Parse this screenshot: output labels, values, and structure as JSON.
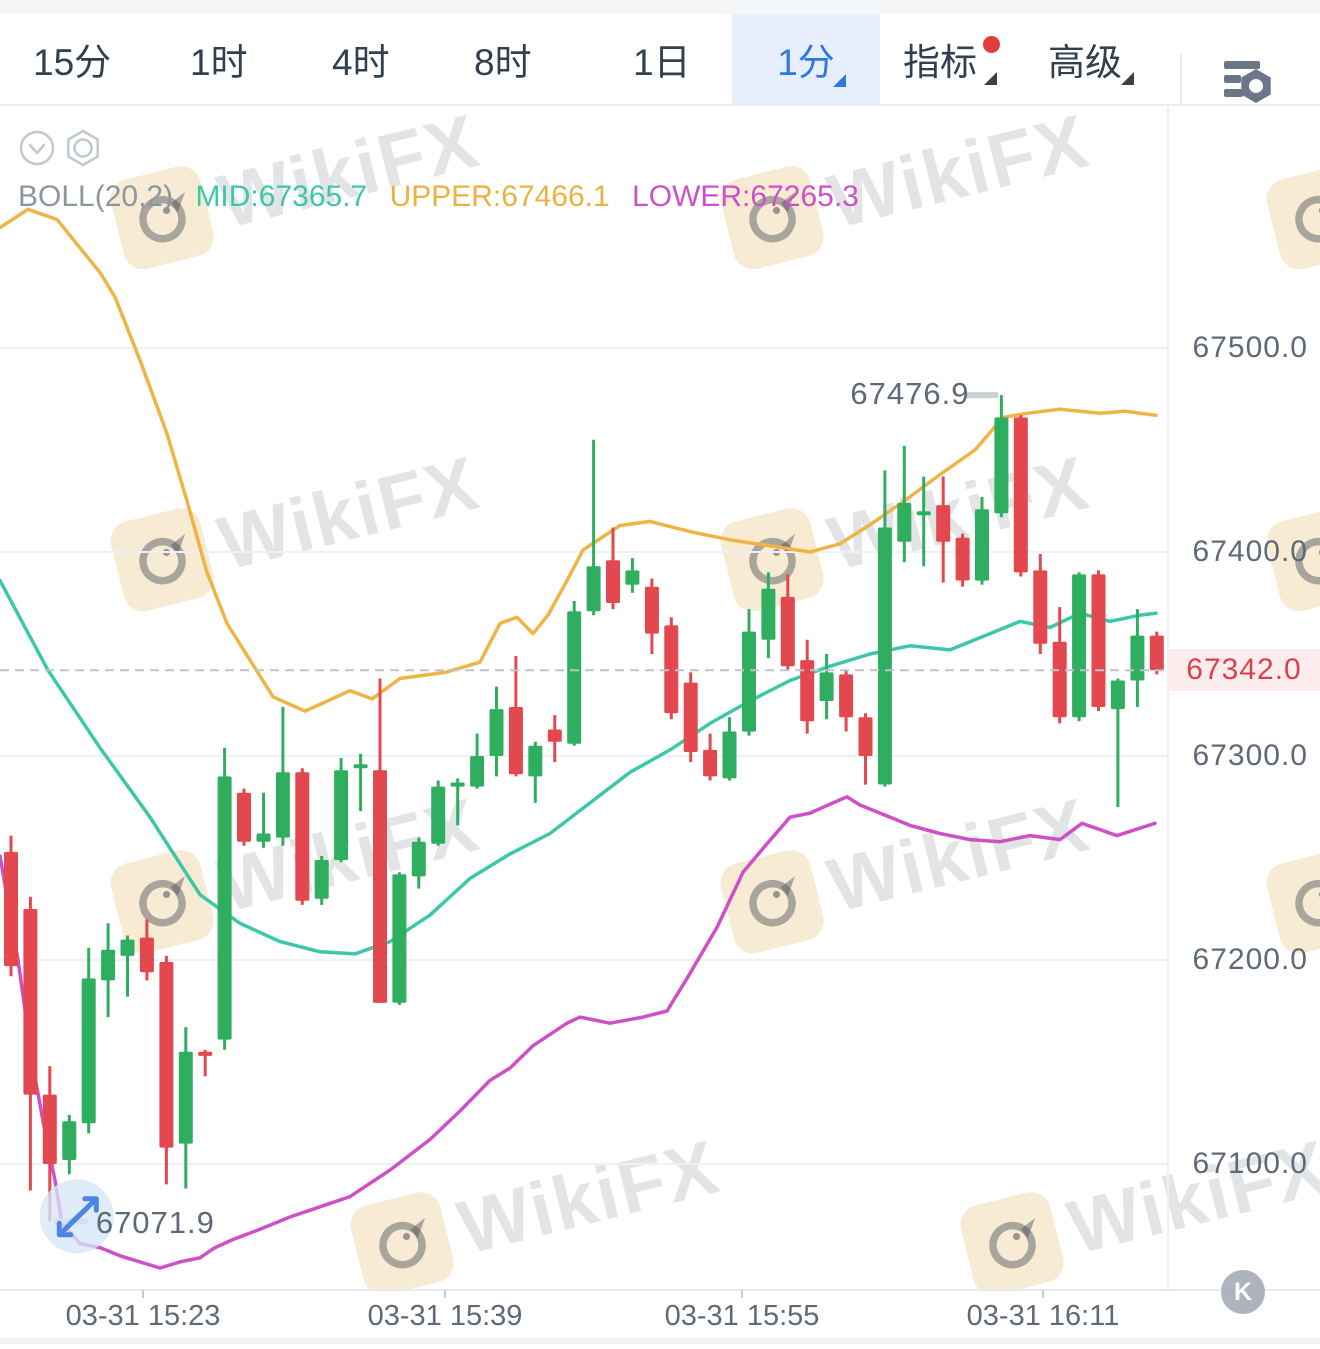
{
  "toolbar": {
    "tabs": [
      {
        "label": "15分"
      },
      {
        "label": "1时"
      },
      {
        "label": "4时"
      },
      {
        "label": "8时"
      },
      {
        "label": "1日"
      },
      {
        "label": "1分",
        "selected": true,
        "caret": true
      },
      {
        "label": "指标",
        "caret": true,
        "badge_dot": true
      },
      {
        "label": "高级",
        "caret": true
      }
    ],
    "settings_icon": "indicator-list-settings-icon"
  },
  "legend": {
    "name": "BOLL(20,2)",
    "mid_label": "MID:67365.7",
    "upper_label": "UPPER:67466.1",
    "lower_label": "LOWER:67265.3"
  },
  "annotations": {
    "high": "67476.9",
    "low": "67071.9",
    "current_price": "67342.0"
  },
  "watermark": {
    "text": "WikiFX"
  },
  "k_button": "K",
  "chart_data": {
    "type": "candlestick",
    "indicator": "BOLL(20,2)",
    "grid": "horizontal-only",
    "ylim": [
      67038,
      67620
    ],
    "y_axis": {
      "labels": [
        "67500.0",
        "67400.0",
        "67300.0",
        "67200.0",
        "67100.0"
      ],
      "values": [
        67500,
        67400,
        67300,
        67200,
        67100
      ]
    },
    "x_axis": {
      "labels": [
        "03-31 15:23",
        "03-31 15:39",
        "03-31 15:55",
        "03-31 16:11"
      ]
    },
    "current_price": 67342.0,
    "high_marker": {
      "value": 67476.9,
      "index": 51
    },
    "low_marker": {
      "value": 67071.9,
      "index": 2
    },
    "colors": {
      "up": "#2fae60",
      "down": "#e2484e",
      "upper_band": "#eeb445",
      "mid_band": "#3cc8a8",
      "lower_band": "#cd50c8"
    },
    "candles": [
      [
        67253,
        67261,
        67192,
        67197
      ],
      [
        67225,
        67231,
        67087,
        67134
      ],
      [
        67134,
        67148,
        67072,
        67100
      ],
      [
        67102,
        67124,
        67095,
        67121
      ],
      [
        67120,
        67206,
        67115,
        67191
      ],
      [
        67190,
        67218,
        67172,
        67205
      ],
      [
        67202,
        67212,
        67182,
        67210
      ],
      [
        67211,
        67220,
        67190,
        67194
      ],
      [
        67199,
        67202,
        67090,
        67108
      ],
      [
        67110,
        67167,
        67088,
        67155
      ],
      [
        67155,
        67156,
        67143,
        67153
      ],
      [
        67161,
        67304,
        67156,
        67290
      ],
      [
        67282,
        67284,
        67256,
        67258
      ],
      [
        67258,
        67282,
        67255,
        67262
      ],
      [
        67260,
        67324,
        67256,
        67292
      ],
      [
        67292,
        67294,
        67227,
        67229
      ],
      [
        67230,
        67251,
        67227,
        67249
      ],
      [
        67249,
        67299,
        67248,
        67293
      ],
      [
        67294,
        67301,
        67273,
        67296
      ],
      [
        67293,
        67338,
        67179,
        67179
      ],
      [
        67179,
        67243,
        67178,
        67242
      ],
      [
        67241,
        67260,
        67235,
        67258
      ],
      [
        67257,
        67288,
        67256,
        67285
      ],
      [
        67285,
        67289,
        67266,
        67287
      ],
      [
        67285,
        67311,
        67284,
        67300
      ],
      [
        67300,
        67334,
        67290,
        67323
      ],
      [
        67324,
        67349,
        67290,
        67291
      ],
      [
        67290,
        67307,
        67277,
        67305
      ],
      [
        67313,
        67320,
        67297,
        67307
      ],
      [
        67306,
        67376,
        67305,
        67371
      ],
      [
        67371,
        67455,
        67369,
        67393
      ],
      [
        67396,
        67412,
        67372,
        67375
      ],
      [
        67384,
        67397,
        67380,
        67391
      ],
      [
        67383,
        67387,
        67350,
        67360
      ],
      [
        67364,
        67368,
        67318,
        67321
      ],
      [
        67336,
        67341,
        67297,
        67302
      ],
      [
        67303,
        67311,
        67288,
        67290
      ],
      [
        67289,
        67319,
        67288,
        67312
      ],
      [
        67312,
        67372,
        67310,
        67361
      ],
      [
        67357,
        67390,
        67348,
        67382
      ],
      [
        67378,
        67389,
        67342,
        67344
      ],
      [
        67347,
        67357,
        67311,
        67317
      ],
      [
        67327,
        67350,
        67318,
        67341
      ],
      [
        67340,
        67342,
        67312,
        67319
      ],
      [
        67319,
        67321,
        67286,
        67300
      ],
      [
        67286,
        67440,
        67285,
        67412
      ],
      [
        67405,
        67452,
        67395,
        67424
      ],
      [
        67418,
        67437,
        67393,
        67420
      ],
      [
        67423,
        67437,
        67385,
        67405
      ],
      [
        67407,
        67409,
        67383,
        67386
      ],
      [
        67386,
        67427,
        67384,
        67421
      ],
      [
        67419,
        67476.9,
        67417,
        67466
      ],
      [
        67466,
        67467,
        67388,
        67390
      ],
      [
        67391,
        67399,
        67350,
        67355
      ],
      [
        67356,
        67373,
        67316,
        67319
      ],
      [
        67319,
        67390,
        67317,
        67389
      ],
      [
        67389,
        67391,
        67322,
        67324
      ],
      [
        67323,
        67338,
        67275,
        67337
      ],
      [
        67337,
        67372,
        67324,
        67359
      ],
      [
        67359,
        67361,
        67340,
        67342
      ]
    ],
    "bands": {
      "upper": [
        [
          0,
          67559
        ],
        [
          28,
          67568
        ],
        [
          57,
          67563
        ],
        [
          100,
          67537
        ],
        [
          115,
          67525
        ],
        [
          140,
          67494
        ],
        [
          167,
          67458
        ],
        [
          187,
          67425
        ],
        [
          207,
          67390
        ],
        [
          227,
          67365
        ],
        [
          250,
          67347
        ],
        [
          273,
          67329
        ],
        [
          305,
          67322
        ],
        [
          350,
          67332
        ],
        [
          372,
          67328
        ],
        [
          400,
          67338
        ],
        [
          445,
          67341
        ],
        [
          480,
          67346
        ],
        [
          500,
          67365
        ],
        [
          517,
          67368
        ],
        [
          533,
          67360
        ],
        [
          548,
          67369
        ],
        [
          567,
          67386
        ],
        [
          583,
          67401
        ],
        [
          620,
          67413
        ],
        [
          650,
          67415
        ],
        [
          690,
          67410
        ],
        [
          730,
          67406
        ],
        [
          770,
          67403
        ],
        [
          810,
          67400
        ],
        [
          840,
          67404
        ],
        [
          875,
          67415
        ],
        [
          907,
          67426
        ],
        [
          940,
          67438
        ],
        [
          975,
          67450
        ],
        [
          1003,
          67466
        ],
        [
          1027,
          67468
        ],
        [
          1060,
          67470
        ],
        [
          1100,
          67468
        ],
        [
          1125,
          67469
        ],
        [
          1156,
          67467
        ]
      ],
      "mid": [
        [
          0,
          67386
        ],
        [
          48,
          67342
        ],
        [
          100,
          67304
        ],
        [
          150,
          67270
        ],
        [
          200,
          67232
        ],
        [
          240,
          67218
        ],
        [
          280,
          67209
        ],
        [
          320,
          67204
        ],
        [
          355,
          67203
        ],
        [
          390,
          67209
        ],
        [
          430,
          67222
        ],
        [
          470,
          67240
        ],
        [
          510,
          67252
        ],
        [
          550,
          67262
        ],
        [
          590,
          67277
        ],
        [
          630,
          67292
        ],
        [
          670,
          67303
        ],
        [
          710,
          67316
        ],
        [
          750,
          67327
        ],
        [
          790,
          67337
        ],
        [
          830,
          67344
        ],
        [
          870,
          67350
        ],
        [
          910,
          67354
        ],
        [
          950,
          67352
        ],
        [
          990,
          67360
        ],
        [
          1020,
          67366
        ],
        [
          1050,
          67363
        ],
        [
          1080,
          67370
        ],
        [
          1110,
          67366
        ],
        [
          1140,
          67369
        ],
        [
          1156,
          67370
        ]
      ],
      "lower": [
        [
          0,
          67251
        ],
        [
          18,
          67200
        ],
        [
          33,
          67148
        ],
        [
          43,
          67121
        ],
        [
          55,
          67092
        ],
        [
          62,
          67071
        ],
        [
          80,
          67061
        ],
        [
          100,
          67059
        ],
        [
          120,
          67055
        ],
        [
          140,
          67052
        ],
        [
          160,
          67049
        ],
        [
          180,
          67052
        ],
        [
          200,
          67054
        ],
        [
          215,
          67059
        ],
        [
          233,
          67063
        ],
        [
          260,
          67068
        ],
        [
          290,
          67074
        ],
        [
          320,
          67079
        ],
        [
          350,
          67084
        ],
        [
          390,
          67097
        ],
        [
          430,
          67112
        ],
        [
          460,
          67126
        ],
        [
          490,
          67141
        ],
        [
          510,
          67147
        ],
        [
          533,
          67158
        ],
        [
          567,
          67169
        ],
        [
          580,
          67172
        ],
        [
          610,
          67169
        ],
        [
          643,
          67172
        ],
        [
          667,
          67175
        ],
        [
          687,
          67191
        ],
        [
          717,
          67216
        ],
        [
          743,
          67243
        ],
        [
          767,
          67257
        ],
        [
          790,
          67270
        ],
        [
          810,
          67272
        ],
        [
          833,
          67277
        ],
        [
          847,
          67280
        ],
        [
          860,
          67276
        ],
        [
          880,
          67272
        ],
        [
          910,
          67266
        ],
        [
          940,
          67262
        ],
        [
          970,
          67259
        ],
        [
          1000,
          67258
        ],
        [
          1030,
          67261
        ],
        [
          1060,
          67259
        ],
        [
          1082,
          67267
        ],
        [
          1117,
          67261
        ],
        [
          1155,
          67267
        ]
      ]
    }
  }
}
